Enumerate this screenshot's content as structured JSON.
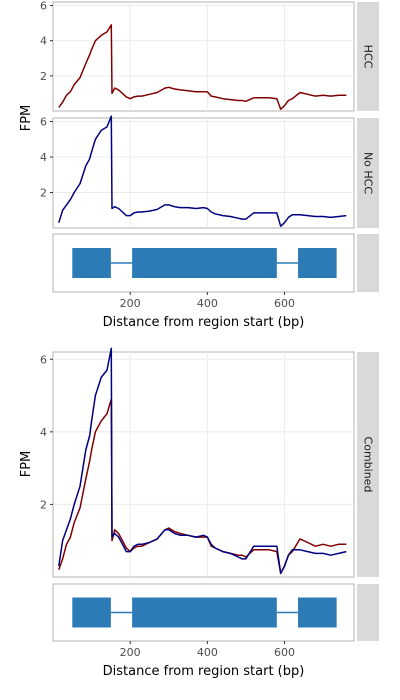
{
  "chart_data": {
    "type": "line",
    "xlabel": "Distance from region start (bp)",
    "ylabel": "FPM",
    "xlim": [
      0,
      780
    ],
    "x_ticks": [
      "200",
      "400",
      "600"
    ],
    "x_tick_values": [
      200,
      400,
      600
    ],
    "ylim": [
      0,
      6.2
    ],
    "y_ticks": [
      "2",
      "4",
      "6"
    ],
    "y_tick_values": [
      2,
      4,
      6
    ],
    "grid": true,
    "colors": {
      "hcc": "#7f0000",
      "nohcc": "#000080",
      "exon": "#2c7bb6",
      "strip": "#d9d9d9",
      "grid": "#ebebeb",
      "frame": "#b3b3b3"
    },
    "facets": [
      {
        "strip": "HCC",
        "series": [
          "hcc"
        ]
      },
      {
        "strip": "No HCC",
        "series": [
          "nohcc"
        ]
      },
      {
        "strip": "Combined",
        "series": [
          "hcc",
          "nohcc"
        ]
      }
    ],
    "gene_model": {
      "exons": [
        [
          50,
          150
        ],
        [
          205,
          580
        ],
        [
          635,
          735
        ]
      ],
      "introns": [
        [
          150,
          205
        ],
        [
          580,
          635
        ]
      ]
    },
    "series": {
      "hcc": {
        "x": [
          15,
          25,
          35,
          45,
          55,
          70,
          85,
          95,
          100,
          110,
          125,
          140,
          151,
          153,
          160,
          170,
          180,
          190,
          200,
          210,
          220,
          230,
          250,
          270,
          290,
          300,
          315,
          330,
          350,
          370,
          390,
          400,
          410,
          420,
          440,
          460,
          480,
          490,
          500,
          520,
          540,
          560,
          580,
          590,
          600,
          610,
          620,
          640,
          660,
          680,
          700,
          720,
          740,
          760
        ],
        "y": [
          0.2,
          0.5,
          0.9,
          1.1,
          1.5,
          1.9,
          2.7,
          3.2,
          3.5,
          4.0,
          4.3,
          4.5,
          4.9,
          1.0,
          1.3,
          1.2,
          1.0,
          0.8,
          0.7,
          0.8,
          0.85,
          0.85,
          0.95,
          1.05,
          1.3,
          1.35,
          1.25,
          1.2,
          1.15,
          1.1,
          1.1,
          1.1,
          0.85,
          0.8,
          0.7,
          0.65,
          0.6,
          0.6,
          0.55,
          0.75,
          0.75,
          0.75,
          0.7,
          0.1,
          0.3,
          0.6,
          0.7,
          1.05,
          0.95,
          0.85,
          0.9,
          0.85,
          0.9,
          0.9
        ]
      },
      "nohcc": {
        "x": [
          15,
          25,
          35,
          45,
          55,
          70,
          85,
          95,
          100,
          110,
          125,
          140,
          151,
          153,
          160,
          170,
          180,
          190,
          200,
          210,
          220,
          230,
          250,
          270,
          290,
          300,
          315,
          330,
          350,
          370,
          390,
          400,
          410,
          420,
          440,
          460,
          480,
          490,
          500,
          520,
          540,
          560,
          580,
          590,
          600,
          610,
          620,
          640,
          660,
          680,
          700,
          720,
          740,
          760
        ],
        "y": [
          0.3,
          1.0,
          1.3,
          1.6,
          2.0,
          2.5,
          3.5,
          3.9,
          4.3,
          5.0,
          5.5,
          5.7,
          6.3,
          1.1,
          1.2,
          1.1,
          0.9,
          0.7,
          0.7,
          0.85,
          0.9,
          0.9,
          0.95,
          1.05,
          1.3,
          1.3,
          1.2,
          1.15,
          1.15,
          1.1,
          1.15,
          1.1,
          0.9,
          0.8,
          0.7,
          0.65,
          0.55,
          0.5,
          0.5,
          0.85,
          0.85,
          0.85,
          0.85,
          0.1,
          0.3,
          0.6,
          0.75,
          0.75,
          0.7,
          0.65,
          0.65,
          0.6,
          0.65,
          0.7
        ]
      }
    }
  }
}
